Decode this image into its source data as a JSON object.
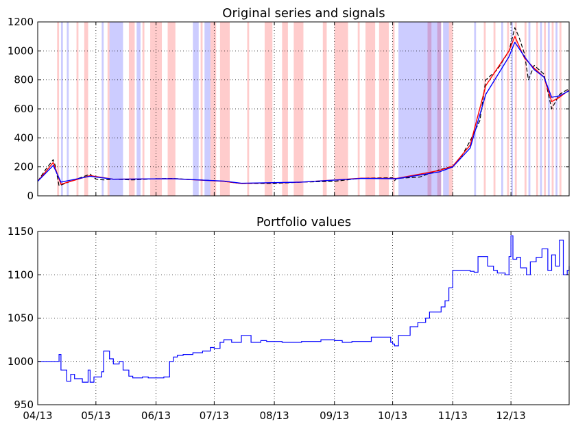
{
  "chart_data": [
    {
      "type": "line",
      "title": "Original series and signals",
      "xlabel": "",
      "ylabel": "",
      "xlim": [
        "2013-04-01",
        "2013-12-31"
      ],
      "ylim": [
        0,
        1200
      ],
      "yticks": [
        0,
        200,
        400,
        600,
        800,
        1000,
        1200
      ],
      "grid": true,
      "x_tick_labels_shown": false,
      "colors": {
        "price": "#000000",
        "smooth_fast": "#ff0000",
        "smooth_slow": "#0000ff",
        "buy_span": "#ff0000",
        "sell_span": "#0000ff"
      },
      "series": [
        {
          "x": [
            "2013-04-01",
            "2013-04-05",
            "2013-04-09",
            "2013-04-10",
            "2013-04-12",
            "2013-04-16",
            "2013-04-22",
            "2013-04-28",
            "2013-05-01",
            "2013-05-05",
            "2013-05-10",
            "2013-05-20",
            "2013-06-01",
            "2013-06-10",
            "2013-06-20",
            "2013-07-01",
            "2013-07-06",
            "2013-07-15",
            "2013-08-01",
            "2013-08-15",
            "2013-09-01",
            "2013-09-15",
            "2013-10-01",
            "2013-10-02",
            "2013-10-03",
            "2013-10-15",
            "2013-10-25",
            "2013-11-01",
            "2013-11-05",
            "2013-11-10",
            "2013-11-15",
            "2013-11-18",
            "2013-11-24",
            "2013-11-30",
            "2013-12-03",
            "2013-12-05",
            "2013-12-08",
            "2013-12-10",
            "2013-12-13",
            "2013-12-18",
            "2013-12-22",
            "2013-12-26",
            "2013-12-31"
          ],
          "values": [
            100,
            180,
            250,
            210,
            70,
            90,
            120,
            150,
            115,
            110,
            115,
            110,
            118,
            120,
            112,
            105,
            100,
            85,
            85,
            95,
            100,
            122,
            125,
            105,
            120,
            130,
            180,
            205,
            260,
            380,
            520,
            800,
            870,
            1000,
            1160,
            1100,
            980,
            800,
            900,
            840,
            600,
            700,
            740
          ]
        },
        {
          "x": [
            "2013-04-01",
            "2013-04-09",
            "2013-04-13",
            "2013-04-28",
            "2013-05-10",
            "2013-06-10",
            "2013-07-06",
            "2013-07-15",
            "2013-08-15",
            "2013-09-15",
            "2013-10-03",
            "2013-10-25",
            "2013-11-01",
            "2013-11-10",
            "2013-11-18",
            "2013-11-30",
            "2013-12-03",
            "2013-12-08",
            "2013-12-13",
            "2013-12-18",
            "2013-12-22",
            "2013-12-26",
            "2013-12-31"
          ],
          "values": [
            100,
            230,
            80,
            140,
            115,
            118,
            100,
            85,
            95,
            122,
            120,
            175,
            205,
            350,
            760,
            1000,
            1100,
            950,
            880,
            820,
            650,
            680,
            730
          ]
        },
        {
          "x": [
            "2013-04-01",
            "2013-04-09",
            "2013-04-13",
            "2013-04-28",
            "2013-05-10",
            "2013-06-10",
            "2013-07-06",
            "2013-07-15",
            "2013-08-15",
            "2013-09-15",
            "2013-10-03",
            "2013-10-25",
            "2013-11-01",
            "2013-11-10",
            "2013-11-18",
            "2013-11-30",
            "2013-12-03",
            "2013-12-08",
            "2013-12-13",
            "2013-12-18",
            "2013-12-22",
            "2013-12-26",
            "2013-12-31"
          ],
          "values": [
            100,
            210,
            95,
            135,
            115,
            118,
            102,
            87,
            95,
            120,
            118,
            165,
            200,
            330,
            700,
            960,
            1060,
            960,
            870,
            820,
            680,
            690,
            725
          ]
        }
      ],
      "buy_spans": [
        [
          "2013-04-11",
          "2013-04-12"
        ],
        [
          "2013-04-21",
          "2013-04-22"
        ],
        [
          "2013-04-25",
          "2013-04-27"
        ],
        [
          "2013-05-07",
          "2013-05-08"
        ],
        [
          "2013-05-18",
          "2013-05-21"
        ],
        [
          "2013-05-25",
          "2013-05-26"
        ],
        [
          "2013-05-29",
          "2013-06-04"
        ],
        [
          "2013-06-07",
          "2013-06-11"
        ],
        [
          "2013-06-24",
          "2013-06-25"
        ],
        [
          "2013-06-29",
          "2013-07-02"
        ],
        [
          "2013-07-04",
          "2013-07-09"
        ],
        [
          "2013-07-18",
          "2013-07-19"
        ],
        [
          "2013-07-27",
          "2013-07-31"
        ],
        [
          "2013-08-05",
          "2013-08-08"
        ],
        [
          "2013-08-11",
          "2013-08-16"
        ],
        [
          "2013-08-26",
          "2013-08-28"
        ],
        [
          "2013-09-01",
          "2013-09-08"
        ],
        [
          "2013-09-13",
          "2013-09-14"
        ],
        [
          "2013-09-17",
          "2013-09-22"
        ],
        [
          "2013-09-24",
          "2013-09-29"
        ],
        [
          "2013-10-01",
          "2013-10-02"
        ],
        [
          "2013-10-19",
          "2013-10-21"
        ],
        [
          "2013-10-24",
          "2013-10-26"
        ],
        [
          "2013-10-30",
          "2013-11-01"
        ],
        [
          "2013-11-17",
          "2013-11-18"
        ],
        [
          "2013-11-22",
          "2013-11-23"
        ],
        [
          "2013-11-29",
          "2013-11-30"
        ],
        [
          "2013-12-03",
          "2013-12-04"
        ],
        [
          "2013-12-08",
          "2013-12-09"
        ],
        [
          "2013-12-14",
          "2013-12-15"
        ],
        [
          "2013-12-18",
          "2013-12-19"
        ],
        [
          "2013-12-22",
          "2013-12-23"
        ],
        [
          "2013-12-26",
          "2013-12-27"
        ]
      ],
      "sell_spans": [
        [
          "2013-04-13",
          "2013-04-14"
        ],
        [
          "2013-04-16",
          "2013-04-17"
        ],
        [
          "2013-05-04",
          "2013-05-05"
        ],
        [
          "2013-05-08",
          "2013-05-15"
        ],
        [
          "2013-05-22",
          "2013-05-24"
        ],
        [
          "2013-06-20",
          "2013-06-23"
        ],
        [
          "2013-06-26",
          "2013-06-29"
        ],
        [
          "2013-10-04",
          "2013-10-26"
        ],
        [
          "2013-10-27",
          "2013-10-30"
        ],
        [
          "2013-11-12",
          "2013-11-13"
        ],
        [
          "2013-11-26",
          "2013-11-27"
        ],
        [
          "2013-12-01",
          "2013-12-02"
        ],
        [
          "2013-12-10",
          "2013-12-11"
        ],
        [
          "2013-12-16",
          "2013-12-17"
        ],
        [
          "2013-12-20",
          "2013-12-21"
        ],
        [
          "2013-12-24",
          "2013-12-25"
        ]
      ]
    },
    {
      "type": "line",
      "title": "Portfolio values",
      "xlabel": "",
      "ylabel": "",
      "xlim": [
        "2013-04-01",
        "2013-12-31"
      ],
      "ylim": [
        950,
        1150
      ],
      "yticks": [
        950,
        1000,
        1050,
        1100,
        1150
      ],
      "xtick_labels": [
        "04/13",
        "05/13",
        "06/13",
        "07/13",
        "08/13",
        "09/13",
        "10/13",
        "11/13",
        "12/13"
      ],
      "xtick_dates": [
        "2013-04-01",
        "2013-05-01",
        "2013-06-01",
        "2013-07-01",
        "2013-08-01",
        "2013-09-01",
        "2013-10-01",
        "2013-11-01",
        "2013-12-01"
      ],
      "grid": true,
      "colors": {
        "line": "#0000ff"
      },
      "x": [
        "2013-04-01",
        "2013-04-11",
        "2013-04-12",
        "2013-04-13",
        "2013-04-16",
        "2013-04-18",
        "2013-04-20",
        "2013-04-24",
        "2013-04-27",
        "2013-04-28",
        "2013-04-30",
        "2013-05-04",
        "2013-05-05",
        "2013-05-08",
        "2013-05-10",
        "2013-05-13",
        "2013-05-15",
        "2013-05-18",
        "2013-05-20",
        "2013-05-25",
        "2013-05-28",
        "2013-06-01",
        "2013-06-05",
        "2013-06-08",
        "2013-06-10",
        "2013-06-12",
        "2013-06-15",
        "2013-06-20",
        "2013-06-25",
        "2013-06-29",
        "2013-07-01",
        "2013-07-04",
        "2013-07-06",
        "2013-07-10",
        "2013-07-15",
        "2013-07-20",
        "2013-07-25",
        "2013-07-28",
        "2013-08-01",
        "2013-08-05",
        "2013-08-15",
        "2013-08-25",
        "2013-09-01",
        "2013-09-05",
        "2013-09-10",
        "2013-09-20",
        "2013-09-30",
        "2013-10-01",
        "2013-10-02",
        "2013-10-04",
        "2013-10-10",
        "2013-10-14",
        "2013-10-18",
        "2013-10-20",
        "2013-10-26",
        "2013-10-28",
        "2013-10-30",
        "2013-11-01",
        "2013-11-10",
        "2013-11-12",
        "2013-11-14",
        "2013-11-19",
        "2013-11-22",
        "2013-11-24",
        "2013-11-28",
        "2013-11-30",
        "2013-12-01",
        "2013-12-02",
        "2013-12-04",
        "2013-12-06",
        "2013-12-09",
        "2013-12-11",
        "2013-12-14",
        "2013-12-17",
        "2013-12-20",
        "2013-12-22",
        "2013-12-24",
        "2013-12-26",
        "2013-12-28",
        "2013-12-30",
        "2013-12-31"
      ],
      "values": [
        1000,
        1000,
        1008,
        990,
        977,
        985,
        980,
        976,
        990,
        976,
        982,
        988,
        1012,
        1003,
        997,
        1000,
        990,
        983,
        981,
        982,
        981,
        981,
        982,
        1000,
        1005,
        1007,
        1008,
        1010,
        1012,
        1016,
        1015,
        1022,
        1025,
        1022,
        1030,
        1022,
        1024,
        1023,
        1023,
        1022,
        1023,
        1025,
        1024,
        1022,
        1023,
        1028,
        1022,
        1020,
        1018,
        1030,
        1040,
        1045,
        1050,
        1057,
        1063,
        1070,
        1085,
        1105,
        1104,
        1103,
        1121,
        1110,
        1105,
        1102,
        1100,
        1121,
        1145,
        1118,
        1120,
        1108,
        1100,
        1115,
        1120,
        1130,
        1105,
        1123,
        1110,
        1140,
        1100,
        1105,
        1110
      ]
    }
  ]
}
